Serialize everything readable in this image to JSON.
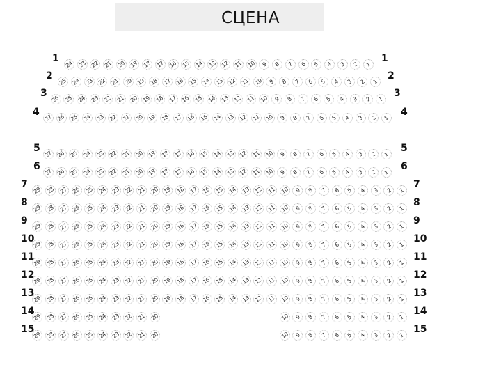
{
  "stage": {
    "label": "СЦЕНА"
  },
  "rows": [
    {
      "label": "1",
      "seats": [
        24,
        23,
        22,
        21,
        20,
        19,
        18,
        17,
        16,
        15,
        14,
        13,
        12,
        11,
        10,
        9,
        8,
        7,
        6,
        5,
        4,
        3,
        2,
        1
      ]
    },
    {
      "label": "2",
      "seats": [
        25,
        24,
        23,
        22,
        21,
        20,
        19,
        18,
        17,
        16,
        15,
        14,
        13,
        12,
        11,
        10,
        9,
        8,
        7,
        6,
        5,
        4,
        3,
        2,
        1
      ]
    },
    {
      "label": "3",
      "seats": [
        26,
        25,
        24,
        23,
        22,
        21,
        20,
        19,
        18,
        17,
        16,
        15,
        14,
        13,
        12,
        11,
        10,
        9,
        8,
        7,
        6,
        5,
        4,
        3,
        2,
        1
      ]
    },
    {
      "label": "4",
      "seats": [
        27,
        26,
        25,
        24,
        23,
        22,
        21,
        20,
        19,
        18,
        17,
        16,
        15,
        14,
        13,
        12,
        11,
        10,
        9,
        8,
        7,
        6,
        5,
        4,
        3,
        2,
        1
      ]
    },
    {
      "label": "5",
      "seats": [
        27,
        26,
        25,
        24,
        23,
        22,
        21,
        20,
        19,
        18,
        17,
        16,
        15,
        14,
        13,
        12,
        11,
        10,
        9,
        8,
        7,
        6,
        5,
        4,
        3,
        2,
        1
      ]
    },
    {
      "label": "6",
      "seats": [
        27,
        26,
        25,
        24,
        23,
        22,
        21,
        20,
        19,
        18,
        17,
        16,
        15,
        14,
        13,
        12,
        11,
        10,
        9,
        8,
        7,
        6,
        5,
        4,
        3,
        2,
        1
      ]
    },
    {
      "label": "7",
      "seats": [
        29,
        28,
        27,
        26,
        25,
        24,
        23,
        22,
        21,
        20,
        19,
        18,
        17,
        16,
        15,
        14,
        13,
        12,
        11,
        10,
        9,
        8,
        7,
        6,
        5,
        4,
        3,
        2,
        1
      ]
    },
    {
      "label": "8",
      "seats": [
        29,
        28,
        27,
        26,
        25,
        24,
        23,
        22,
        21,
        20,
        19,
        18,
        17,
        16,
        15,
        14,
        13,
        12,
        11,
        10,
        9,
        8,
        7,
        6,
        5,
        4,
        3,
        2,
        1
      ]
    },
    {
      "label": "9",
      "seats": [
        29,
        28,
        27,
        26,
        25,
        24,
        23,
        22,
        21,
        20,
        19,
        18,
        17,
        16,
        15,
        14,
        13,
        12,
        11,
        10,
        9,
        8,
        7,
        6,
        5,
        4,
        3,
        2,
        1
      ]
    },
    {
      "label": "10",
      "seats": [
        29,
        28,
        27,
        26,
        25,
        24,
        23,
        22,
        21,
        20,
        19,
        18,
        17,
        16,
        15,
        14,
        13,
        12,
        11,
        10,
        9,
        8,
        7,
        6,
        5,
        4,
        3,
        2,
        1
      ]
    },
    {
      "label": "11",
      "seats": [
        29,
        28,
        27,
        26,
        25,
        24,
        23,
        22,
        21,
        20,
        19,
        18,
        17,
        16,
        15,
        14,
        13,
        12,
        11,
        10,
        9,
        8,
        7,
        6,
        5,
        4,
        3,
        2,
        1
      ]
    },
    {
      "label": "12",
      "seats": [
        29,
        28,
        27,
        26,
        25,
        24,
        23,
        22,
        21,
        20,
        19,
        18,
        17,
        16,
        15,
        14,
        13,
        12,
        11,
        10,
        9,
        8,
        7,
        6,
        5,
        4,
        3,
        2,
        1
      ]
    },
    {
      "label": "13",
      "seats": [
        29,
        28,
        27,
        26,
        25,
        24,
        23,
        22,
        21,
        20,
        19,
        18,
        17,
        16,
        15,
        14,
        13,
        12,
        11,
        10,
        9,
        8,
        7,
        6,
        5,
        4,
        3,
        2,
        1
      ]
    },
    {
      "label": "14",
      "seats": [
        29,
        28,
        27,
        26,
        25,
        24,
        23,
        22,
        21,
        20,
        10,
        9,
        8,
        7,
        6,
        5,
        4,
        3,
        2,
        1
      ]
    },
    {
      "label": "15",
      "seats": [
        29,
        28,
        27,
        26,
        25,
        24,
        23,
        22,
        21,
        20,
        10,
        9,
        8,
        7,
        6,
        5,
        4,
        3,
        2,
        1
      ]
    }
  ]
}
